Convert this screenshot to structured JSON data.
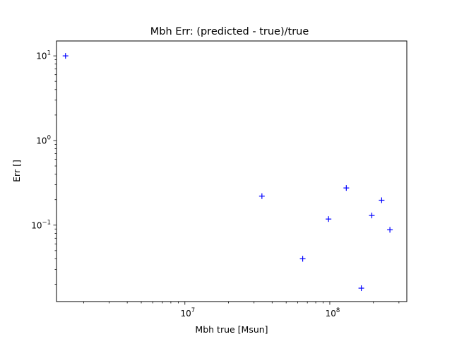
{
  "chart_data": {
    "type": "scatter",
    "title": "Mbh Err: (predicted - true)/true",
    "xlabel": "Mbh true [Msun]",
    "ylabel": "Err []",
    "xscale": "log",
    "yscale": "log",
    "xlim": [
      1300000,
      340000000
    ],
    "ylim": [
      0.0125,
      15
    ],
    "grid": false,
    "marker": "+",
    "marker_color": "#0000ff",
    "x_ticks": [
      {
        "value": 10000000,
        "base": "10",
        "exp": "7"
      },
      {
        "value": 100000000,
        "base": "10",
        "exp": "8"
      }
    ],
    "y_ticks": [
      {
        "value": 0.1,
        "base": "10",
        "exp": "−1"
      },
      {
        "value": 1,
        "base": "10",
        "exp": "0"
      },
      {
        "value": 10,
        "base": "10",
        "exp": "1"
      }
    ],
    "points": [
      {
        "x": 1500000,
        "y": 10.0
      },
      {
        "x": 34000000,
        "y": 0.22
      },
      {
        "x": 65000000,
        "y": 0.04
      },
      {
        "x": 98000000,
        "y": 0.118
      },
      {
        "x": 130000000,
        "y": 0.275
      },
      {
        "x": 165000000,
        "y": 0.018
      },
      {
        "x": 195000000,
        "y": 0.13
      },
      {
        "x": 228000000,
        "y": 0.197
      },
      {
        "x": 260000000,
        "y": 0.088
      }
    ]
  }
}
